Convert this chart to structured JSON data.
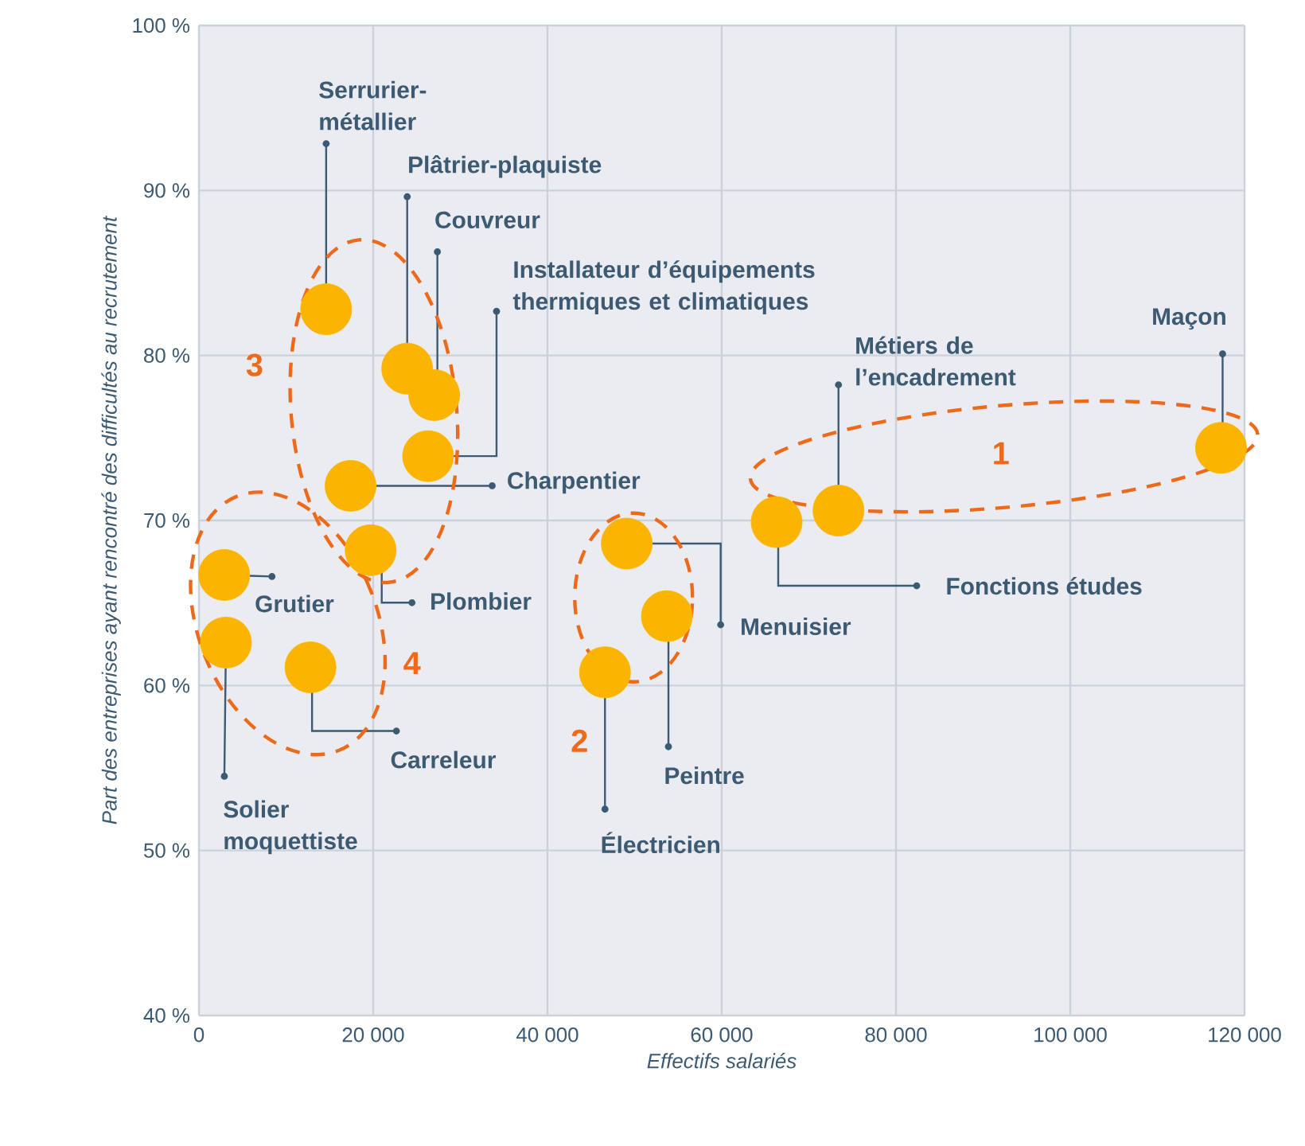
{
  "chart_data": {
    "type": "scatter",
    "xlabel": "Effectifs salariés",
    "ylabel": "Part des entreprises ayant rencontré des difficultés au recrutement",
    "x": [
      14600,
      23900,
      27000,
      26300,
      17400,
      19700,
      2900,
      3100,
      12800,
      46600,
      49100,
      53700,
      66300,
      73400,
      117300
    ],
    "values": [
      82.8,
      79.2,
      77.6,
      73.9,
      72.1,
      68.2,
      66.7,
      62.6,
      61.1,
      60.8,
      68.6,
      64.2,
      69.9,
      70.6,
      74.4
    ],
    "color": "#fbb500",
    "grid": true,
    "xlim": [
      0,
      120000
    ],
    "ylim": [
      40,
      100
    ],
    "xticks": [
      0,
      {
        "value": 20000,
        "label": "20 000"
      },
      {
        "value": 40000,
        "label": "40 000"
      },
      {
        "value": 60000,
        "label": "60 000"
      },
      {
        "value": 80000,
        "label": "80 000"
      },
      {
        "value": 100000,
        "label": "100 000"
      },
      {
        "value": 120000,
        "label": "120 000"
      }
    ],
    "yticks": [
      {
        "value": 40,
        "label": "40 %"
      },
      {
        "value": 50,
        "label": "50 %"
      },
      {
        "value": 60,
        "label": "60 %"
      },
      {
        "value": 70,
        "label": "70 %"
      },
      {
        "value": 80,
        "label": "80 %"
      },
      {
        "value": 90,
        "label": "90 %"
      },
      {
        "value": 100,
        "label": "100 %"
      }
    ],
    "annotations": [
      "Serrurier-métallier",
      "Plâtrier-plaquiste",
      "Couvreur",
      "Installateur d’équipements thermiques et climatiques",
      "Charpentier",
      "Plombier",
      "Grutier",
      "Solier moquettiste",
      "Carreleur",
      "Électricien",
      "Menuisier",
      "Peintre",
      "Fonctions études",
      "Métiers de l’encadrement",
      "Maçon",
      "1",
      "2",
      "3",
      "4"
    ]
  }
}
